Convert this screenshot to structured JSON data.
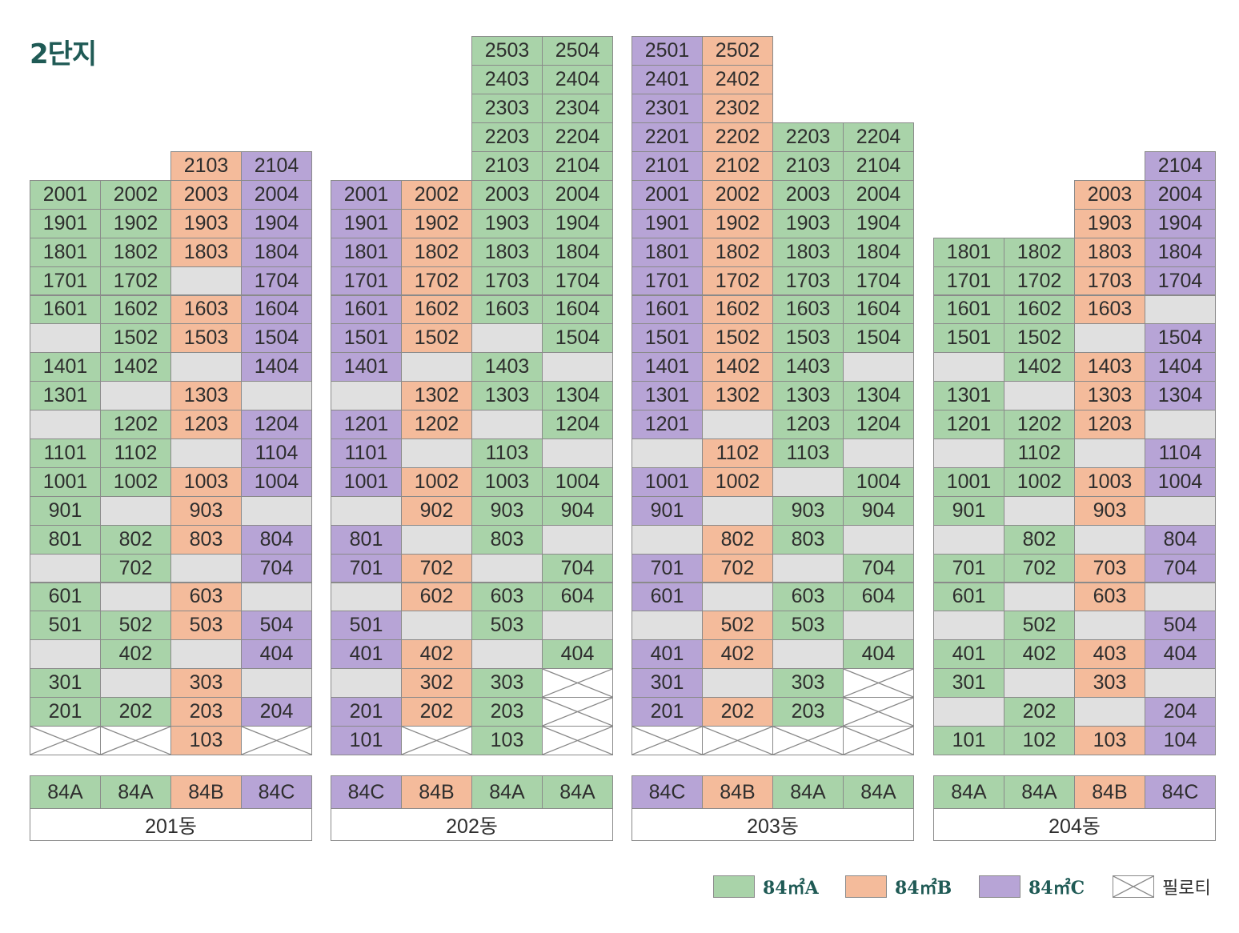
{
  "title": "2단지",
  "colors": {
    "A": "#a9d3a9",
    "B": "#f4bb9b",
    "C": "#b7a4d6",
    "E": "#e0e0e0",
    "P": "#ffffff"
  },
  "legend": [
    {
      "type": "A",
      "label": "84㎡A"
    },
    {
      "type": "B",
      "label": "84㎡B"
    },
    {
      "type": "C",
      "label": "84㎡C"
    },
    {
      "type": "P",
      "label": "필로티"
    }
  ],
  "buildings": [
    {
      "name": "201동",
      "type_labels": [
        "84A",
        "84A",
        "84B",
        "84C"
      ],
      "col_types": [
        "A",
        "A",
        "B",
        "C"
      ],
      "floors": [
        {
          "floor": 21,
          "cells": [
            null,
            null,
            "2103",
            "2104"
          ]
        },
        {
          "floor": 20,
          "cells": [
            "2001",
            "2002",
            "2003",
            "2004"
          ]
        },
        {
          "floor": 19,
          "cells": [
            "1901",
            "1902",
            "1903",
            "1904"
          ]
        },
        {
          "floor": 18,
          "cells": [
            "1801",
            "1802",
            "1803",
            "1804"
          ]
        },
        {
          "floor": 17,
          "cells": [
            "1701",
            "1702",
            "",
            "1704"
          ]
        },
        {
          "floor": 16,
          "cells": [
            "1601",
            "1602",
            "1603",
            "1604"
          ]
        },
        {
          "floor": 15,
          "cells": [
            "",
            "1502",
            "1503",
            "1504"
          ]
        },
        {
          "floor": 14,
          "cells": [
            "1401",
            "1402",
            "",
            "1404"
          ]
        },
        {
          "floor": 13,
          "cells": [
            "1301",
            "",
            "1303",
            ""
          ]
        },
        {
          "floor": 12,
          "cells": [
            "",
            "1202",
            "1203",
            "1204"
          ]
        },
        {
          "floor": 11,
          "cells": [
            "1101",
            "1102",
            "",
            "1104"
          ]
        },
        {
          "floor": 10,
          "cells": [
            "1001",
            "1002",
            "1003",
            "1004"
          ]
        },
        {
          "floor": 9,
          "cells": [
            "901",
            "",
            "903",
            ""
          ]
        },
        {
          "floor": 8,
          "cells": [
            "801",
            "802",
            "803",
            "804"
          ]
        },
        {
          "floor": 7,
          "cells": [
            "",
            "702",
            "",
            "704"
          ]
        },
        {
          "floor": 6,
          "cells": [
            "601",
            "",
            "603",
            ""
          ]
        },
        {
          "floor": 5,
          "cells": [
            "501",
            "502",
            "503",
            "504"
          ]
        },
        {
          "floor": 4,
          "cells": [
            "",
            "402",
            "",
            "404"
          ]
        },
        {
          "floor": 3,
          "cells": [
            "301",
            "",
            "303",
            ""
          ]
        },
        {
          "floor": 2,
          "cells": [
            "201",
            "202",
            "203",
            "204"
          ]
        },
        {
          "floor": 1,
          "cells": [
            "X",
            "X",
            "103",
            "X"
          ]
        }
      ]
    },
    {
      "name": "202동",
      "type_labels": [
        "84C",
        "84B",
        "84A",
        "84A"
      ],
      "col_types": [
        "C",
        "B",
        "A",
        "A"
      ],
      "floors": [
        {
          "floor": 25,
          "cells": [
            null,
            null,
            "2503",
            "2504"
          ]
        },
        {
          "floor": 24,
          "cells": [
            null,
            null,
            "2403",
            "2404"
          ]
        },
        {
          "floor": 23,
          "cells": [
            null,
            null,
            "2303",
            "2304"
          ]
        },
        {
          "floor": 22,
          "cells": [
            null,
            null,
            "2203",
            "2204"
          ]
        },
        {
          "floor": 21,
          "cells": [
            null,
            null,
            "2103",
            "2104"
          ]
        },
        {
          "floor": 20,
          "cells": [
            "2001",
            "2002",
            "2003",
            "2004"
          ]
        },
        {
          "floor": 19,
          "cells": [
            "1901",
            "1902",
            "1903",
            "1904"
          ]
        },
        {
          "floor": 18,
          "cells": [
            "1801",
            "1802",
            "1803",
            "1804"
          ]
        },
        {
          "floor": 17,
          "cells": [
            "1701",
            "1702",
            "1703",
            "1704"
          ]
        },
        {
          "floor": 16,
          "cells": [
            "1601",
            "1602",
            "1603",
            "1604"
          ]
        },
        {
          "floor": 15,
          "cells": [
            "1501",
            "1502",
            "",
            "1504"
          ]
        },
        {
          "floor": 14,
          "cells": [
            "1401",
            "",
            "1403",
            ""
          ]
        },
        {
          "floor": 13,
          "cells": [
            "",
            "1302",
            "1303",
            "1304"
          ]
        },
        {
          "floor": 12,
          "cells": [
            "1201",
            "1202",
            "",
            "1204"
          ]
        },
        {
          "floor": 11,
          "cells": [
            "1101",
            "",
            "1103",
            ""
          ]
        },
        {
          "floor": 10,
          "cells": [
            "1001",
            "1002",
            "1003",
            "1004"
          ]
        },
        {
          "floor": 9,
          "cells": [
            "",
            "902",
            "903",
            "904"
          ]
        },
        {
          "floor": 8,
          "cells": [
            "801",
            "",
            "803",
            ""
          ]
        },
        {
          "floor": 7,
          "cells": [
            "701",
            "702",
            "",
            "704"
          ]
        },
        {
          "floor": 6,
          "cells": [
            "",
            "602",
            "603",
            "604"
          ]
        },
        {
          "floor": 5,
          "cells": [
            "501",
            "",
            "503",
            ""
          ]
        },
        {
          "floor": 4,
          "cells": [
            "401",
            "402",
            "",
            "404"
          ]
        },
        {
          "floor": 3,
          "cells": [
            "",
            "302",
            "303",
            "X"
          ]
        },
        {
          "floor": 2,
          "cells": [
            "201",
            "202",
            "203",
            "X"
          ]
        },
        {
          "floor": 1,
          "cells": [
            "101",
            "X",
            "103",
            "X"
          ]
        }
      ]
    },
    {
      "name": "203동",
      "type_labels": [
        "84C",
        "84B",
        "84A",
        "84A"
      ],
      "col_types": [
        "C",
        "B",
        "A",
        "A"
      ],
      "floors": [
        {
          "floor": 25,
          "cells": [
            "2501",
            "2502",
            null,
            null
          ]
        },
        {
          "floor": 24,
          "cells": [
            "2401",
            "2402",
            null,
            null
          ]
        },
        {
          "floor": 23,
          "cells": [
            "2301",
            "2302",
            null,
            null
          ]
        },
        {
          "floor": 22,
          "cells": [
            "2201",
            "2202",
            "2203",
            "2204"
          ]
        },
        {
          "floor": 21,
          "cells": [
            "2101",
            "2102",
            "2103",
            "2104"
          ]
        },
        {
          "floor": 20,
          "cells": [
            "2001",
            "2002",
            "2003",
            "2004"
          ]
        },
        {
          "floor": 19,
          "cells": [
            "1901",
            "1902",
            "1903",
            "1904"
          ]
        },
        {
          "floor": 18,
          "cells": [
            "1801",
            "1802",
            "1803",
            "1804"
          ]
        },
        {
          "floor": 17,
          "cells": [
            "1701",
            "1702",
            "1703",
            "1704"
          ]
        },
        {
          "floor": 16,
          "cells": [
            "1601",
            "1602",
            "1603",
            "1604"
          ]
        },
        {
          "floor": 15,
          "cells": [
            "1501",
            "1502",
            "1503",
            "1504"
          ]
        },
        {
          "floor": 14,
          "cells": [
            "1401",
            "1402",
            "1403",
            ""
          ]
        },
        {
          "floor": 13,
          "cells": [
            "1301",
            "1302",
            "1303",
            "1304"
          ]
        },
        {
          "floor": 12,
          "cells": [
            "1201",
            "",
            "1203",
            "1204"
          ]
        },
        {
          "floor": 11,
          "cells": [
            "",
            "1102",
            "1103",
            ""
          ]
        },
        {
          "floor": 10,
          "cells": [
            "1001",
            "1002",
            "",
            "1004"
          ]
        },
        {
          "floor": 9,
          "cells": [
            "901",
            "",
            "903",
            "904"
          ]
        },
        {
          "floor": 8,
          "cells": [
            "",
            "802",
            "803",
            ""
          ]
        },
        {
          "floor": 7,
          "cells": [
            "701",
            "702",
            "",
            "704"
          ]
        },
        {
          "floor": 6,
          "cells": [
            "601",
            "",
            "603",
            "604"
          ]
        },
        {
          "floor": 5,
          "cells": [
            "",
            "502",
            "503",
            ""
          ]
        },
        {
          "floor": 4,
          "cells": [
            "401",
            "402",
            "",
            "404"
          ]
        },
        {
          "floor": 3,
          "cells": [
            "301",
            "",
            "303",
            "X"
          ]
        },
        {
          "floor": 2,
          "cells": [
            "201",
            "202",
            "203",
            "X"
          ]
        },
        {
          "floor": 1,
          "cells": [
            "X",
            "X",
            "X",
            "X"
          ]
        }
      ]
    },
    {
      "name": "204동",
      "type_labels": [
        "84A",
        "84A",
        "84B",
        "84C"
      ],
      "col_types": [
        "A",
        "A",
        "B",
        "C"
      ],
      "floors": [
        {
          "floor": 21,
          "cells": [
            null,
            null,
            null,
            "2104"
          ]
        },
        {
          "floor": 20,
          "cells": [
            null,
            null,
            "2003",
            "2004"
          ]
        },
        {
          "floor": 19,
          "cells": [
            null,
            null,
            "1903",
            "1904"
          ]
        },
        {
          "floor": 18,
          "cells": [
            "1801",
            "1802",
            "1803",
            "1804"
          ]
        },
        {
          "floor": 17,
          "cells": [
            "1701",
            "1702",
            "1703",
            "1704"
          ]
        },
        {
          "floor": 16,
          "cells": [
            "1601",
            "1602",
            "1603",
            ""
          ]
        },
        {
          "floor": 15,
          "cells": [
            "1501",
            "1502",
            "",
            "1504"
          ]
        },
        {
          "floor": 14,
          "cells": [
            "",
            "1402",
            "1403",
            "1404"
          ]
        },
        {
          "floor": 13,
          "cells": [
            "1301",
            "",
            "1303",
            "1304"
          ]
        },
        {
          "floor": 12,
          "cells": [
            "1201",
            "1202",
            "1203",
            ""
          ]
        },
        {
          "floor": 11,
          "cells": [
            "",
            "1102",
            "",
            "1104"
          ]
        },
        {
          "floor": 10,
          "cells": [
            "1001",
            "1002",
            "1003",
            "1004"
          ]
        },
        {
          "floor": 9,
          "cells": [
            "901",
            "",
            "903",
            ""
          ]
        },
        {
          "floor": 8,
          "cells": [
            "",
            "802",
            "",
            "804"
          ]
        },
        {
          "floor": 7,
          "cells": [
            "701",
            "702",
            "703",
            "704"
          ]
        },
        {
          "floor": 6,
          "cells": [
            "601",
            "",
            "603",
            ""
          ]
        },
        {
          "floor": 5,
          "cells": [
            "",
            "502",
            "",
            "504"
          ]
        },
        {
          "floor": 4,
          "cells": [
            "401",
            "402",
            "403",
            "404"
          ]
        },
        {
          "floor": 3,
          "cells": [
            "301",
            "",
            "303",
            ""
          ]
        },
        {
          "floor": 2,
          "cells": [
            "",
            "202",
            "",
            "204"
          ]
        },
        {
          "floor": 1,
          "cells": [
            "101",
            "102",
            "103",
            "104"
          ]
        }
      ]
    }
  ]
}
